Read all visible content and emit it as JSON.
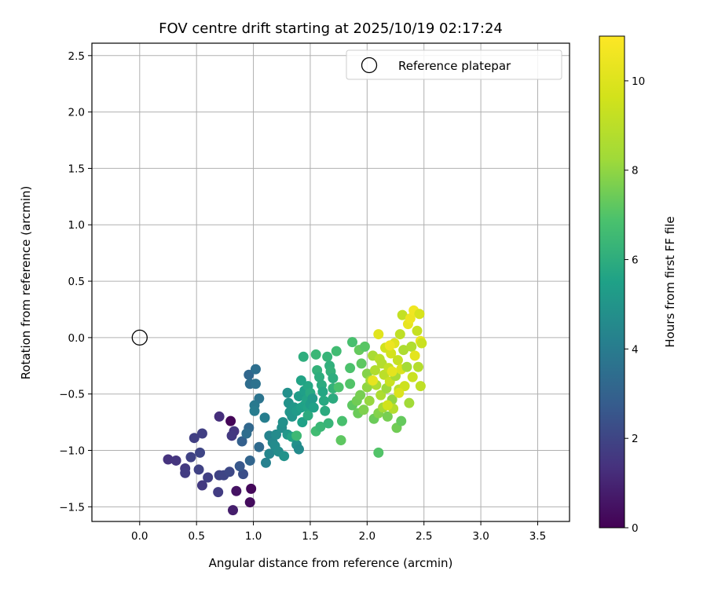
{
  "chart_data": {
    "type": "scatter",
    "title": "FOV centre drift starting at 2025/10/19 02:17:24",
    "xlabel": "Angular distance from reference (arcmin)",
    "ylabel": "Rotation from reference (arcmin)",
    "xlim": [
      -0.42,
      3.78
    ],
    "ylim": [
      -1.63,
      2.61
    ],
    "xticks": [
      "0.0",
      "0.5",
      "1.0",
      "1.5",
      "2.0",
      "2.5",
      "3.0",
      "3.5"
    ],
    "yticks": [
      "−1.5",
      "−1.0",
      "−0.5",
      "0.0",
      "0.5",
      "1.0",
      "1.5",
      "2.0",
      "2.5"
    ],
    "grid": true,
    "legend": {
      "position": "top-right",
      "entries": [
        "Reference platepar"
      ]
    },
    "colorbar": {
      "label": "Hours from first FF file",
      "range": [
        0,
        11
      ],
      "ticks": [
        "0",
        "2",
        "4",
        "6",
        "8",
        "10"
      ],
      "colormap": "viridis"
    },
    "reference_point": {
      "x": 0.0,
      "y": 0.0
    },
    "points": [
      {
        "x": 0.8,
        "y": -0.74,
        "h": 0.1
      },
      {
        "x": 0.98,
        "y": -1.34,
        "h": 0.2
      },
      {
        "x": 0.97,
        "y": -1.46,
        "h": 0.3
      },
      {
        "x": 0.85,
        "y": -1.36,
        "h": 0.5
      },
      {
        "x": 0.82,
        "y": -1.53,
        "h": 0.8
      },
      {
        "x": 0.7,
        "y": -0.7,
        "h": 1.3
      },
      {
        "x": 0.83,
        "y": -0.83,
        "h": 1.5
      },
      {
        "x": 0.81,
        "y": -0.87,
        "h": 1.6
      },
      {
        "x": 0.55,
        "y": -0.85,
        "h": 1.8
      },
      {
        "x": 0.48,
        "y": -0.89,
        "h": 1.8
      },
      {
        "x": 0.45,
        "y": -1.06,
        "h": 1.9
      },
      {
        "x": 0.53,
        "y": -1.02,
        "h": 2.0
      },
      {
        "x": 0.25,
        "y": -1.08,
        "h": 1.4
      },
      {
        "x": 0.32,
        "y": -1.09,
        "h": 1.5
      },
      {
        "x": 0.4,
        "y": -1.16,
        "h": 1.6
      },
      {
        "x": 0.4,
        "y": -1.2,
        "h": 1.7
      },
      {
        "x": 0.52,
        "y": -1.17,
        "h": 1.9
      },
      {
        "x": 0.55,
        "y": -1.31,
        "h": 1.6
      },
      {
        "x": 0.6,
        "y": -1.24,
        "h": 1.8
      },
      {
        "x": 0.7,
        "y": -1.22,
        "h": 1.9
      },
      {
        "x": 0.74,
        "y": -1.22,
        "h": 2.0
      },
      {
        "x": 0.69,
        "y": -1.37,
        "h": 1.7
      },
      {
        "x": 0.79,
        "y": -1.19,
        "h": 2.1
      },
      {
        "x": 0.91,
        "y": -1.21,
        "h": 2.3
      },
      {
        "x": 0.88,
        "y": -1.14,
        "h": 2.6
      },
      {
        "x": 0.9,
        "y": -0.92,
        "h": 2.9
      },
      {
        "x": 0.96,
        "y": -0.8,
        "h": 3.2
      },
      {
        "x": 0.94,
        "y": -0.85,
        "h": 3.4
      },
      {
        "x": 0.97,
        "y": -1.09,
        "h": 3.1
      },
      {
        "x": 1.05,
        "y": -0.97,
        "h": 3.3
      },
      {
        "x": 0.96,
        "y": -0.33,
        "h": 3.2
      },
      {
        "x": 0.97,
        "y": -0.41,
        "h": 3.4
      },
      {
        "x": 1.02,
        "y": -0.28,
        "h": 3.5
      },
      {
        "x": 1.02,
        "y": -0.41,
        "h": 3.6
      },
      {
        "x": 1.05,
        "y": -0.54,
        "h": 3.7
      },
      {
        "x": 1.01,
        "y": -0.6,
        "h": 3.9
      },
      {
        "x": 1.01,
        "y": -0.65,
        "h": 4.0
      },
      {
        "x": 1.1,
        "y": -0.71,
        "h": 4.1
      },
      {
        "x": 1.11,
        "y": -1.11,
        "h": 4.2
      },
      {
        "x": 1.14,
        "y": -1.03,
        "h": 4.4
      },
      {
        "x": 1.14,
        "y": -0.87,
        "h": 4.3
      },
      {
        "x": 1.17,
        "y": -0.93,
        "h": 4.5
      },
      {
        "x": 1.19,
        "y": -0.96,
        "h": 4.6
      },
      {
        "x": 1.2,
        "y": -0.86,
        "h": 4.6
      },
      {
        "x": 1.22,
        "y": -1.01,
        "h": 4.7
      },
      {
        "x": 1.25,
        "y": -0.8,
        "h": 4.7
      },
      {
        "x": 1.26,
        "y": -0.75,
        "h": 4.8
      },
      {
        "x": 1.27,
        "y": -1.05,
        "h": 4.9
      },
      {
        "x": 1.3,
        "y": -0.49,
        "h": 4.8
      },
      {
        "x": 1.31,
        "y": -0.58,
        "h": 4.9
      },
      {
        "x": 1.32,
        "y": -0.66,
        "h": 5.0
      },
      {
        "x": 1.34,
        "y": -0.7,
        "h": 5.0
      },
      {
        "x": 1.3,
        "y": -0.86,
        "h": 5.1
      },
      {
        "x": 1.34,
        "y": -0.88,
        "h": 5.6
      },
      {
        "x": 1.36,
        "y": -0.62,
        "h": 5.1
      },
      {
        "x": 1.38,
        "y": -0.65,
        "h": 5.2
      },
      {
        "x": 1.38,
        "y": -0.95,
        "h": 4.8
      },
      {
        "x": 1.4,
        "y": -0.99,
        "h": 4.6
      },
      {
        "x": 1.4,
        "y": -0.52,
        "h": 5.3
      },
      {
        "x": 1.42,
        "y": -0.62,
        "h": 5.4
      },
      {
        "x": 1.43,
        "y": -0.75,
        "h": 5.5
      },
      {
        "x": 1.45,
        "y": -0.47,
        "h": 5.4
      },
      {
        "x": 1.45,
        "y": -0.6,
        "h": 5.5
      },
      {
        "x": 1.47,
        "y": -0.55,
        "h": 5.6
      },
      {
        "x": 1.48,
        "y": -0.43,
        "h": 5.7
      },
      {
        "x": 1.48,
        "y": -0.62,
        "h": 5.6
      },
      {
        "x": 1.48,
        "y": -0.69,
        "h": 5.9
      },
      {
        "x": 1.5,
        "y": -0.49,
        "h": 5.8
      },
      {
        "x": 1.5,
        "y": -0.59,
        "h": 5.3
      },
      {
        "x": 1.52,
        "y": -0.54,
        "h": 5.2
      },
      {
        "x": 1.53,
        "y": -0.62,
        "h": 5.5
      },
      {
        "x": 1.42,
        "y": -0.38,
        "h": 5.6
      },
      {
        "x": 1.44,
        "y": -0.17,
        "h": 6.0
      },
      {
        "x": 1.55,
        "y": -0.15,
        "h": 6.4
      },
      {
        "x": 1.56,
        "y": -0.29,
        "h": 6.2
      },
      {
        "x": 1.58,
        "y": -0.35,
        "h": 6.0
      },
      {
        "x": 1.6,
        "y": -0.42,
        "h": 5.9
      },
      {
        "x": 1.61,
        "y": -0.48,
        "h": 5.7
      },
      {
        "x": 1.62,
        "y": -0.56,
        "h": 5.8
      },
      {
        "x": 1.63,
        "y": -0.65,
        "h": 5.9
      },
      {
        "x": 1.65,
        "y": -0.17,
        "h": 6.3
      },
      {
        "x": 1.67,
        "y": -0.25,
        "h": 6.1
      },
      {
        "x": 1.68,
        "y": -0.3,
        "h": 6.2
      },
      {
        "x": 1.7,
        "y": -0.36,
        "h": 6.0
      },
      {
        "x": 1.7,
        "y": -0.45,
        "h": 6.2
      },
      {
        "x": 1.7,
        "y": -0.54,
        "h": 5.9
      },
      {
        "x": 1.73,
        "y": -0.12,
        "h": 6.6
      },
      {
        "x": 1.55,
        "y": -0.83,
        "h": 6.6
      },
      {
        "x": 1.59,
        "y": -0.79,
        "h": 6.4
      },
      {
        "x": 1.66,
        "y": -0.76,
        "h": 6.3
      },
      {
        "x": 1.38,
        "y": -0.87,
        "h": 6.5
      },
      {
        "x": 1.77,
        "y": -0.91,
        "h": 7.2
      },
      {
        "x": 1.75,
        "y": -0.44,
        "h": 6.9
      },
      {
        "x": 1.78,
        "y": -0.74,
        "h": 6.8
      },
      {
        "x": 1.85,
        "y": -0.27,
        "h": 6.9
      },
      {
        "x": 1.85,
        "y": -0.41,
        "h": 7.0
      },
      {
        "x": 1.87,
        "y": -0.04,
        "h": 6.8
      },
      {
        "x": 1.87,
        "y": -0.6,
        "h": 7.2
      },
      {
        "x": 1.91,
        "y": -0.56,
        "h": 7.5
      },
      {
        "x": 1.92,
        "y": -0.67,
        "h": 7.4
      },
      {
        "x": 1.93,
        "y": -0.11,
        "h": 7.3
      },
      {
        "x": 1.94,
        "y": -0.51,
        "h": 7.6
      },
      {
        "x": 1.95,
        "y": -0.23,
        "h": 7.2
      },
      {
        "x": 1.97,
        "y": -0.64,
        "h": 7.7
      },
      {
        "x": 1.98,
        "y": -0.08,
        "h": 7.1
      },
      {
        "x": 2.0,
        "y": -0.32,
        "h": 7.8
      },
      {
        "x": 2.0,
        "y": -0.44,
        "h": 8.0
      },
      {
        "x": 2.02,
        "y": -0.56,
        "h": 8.1
      },
      {
        "x": 2.03,
        "y": -0.38,
        "h": 8.3
      },
      {
        "x": 2.05,
        "y": -0.16,
        "h": 8.5
      },
      {
        "x": 2.06,
        "y": -0.72,
        "h": 7.4
      },
      {
        "x": 2.07,
        "y": -0.29,
        "h": 8.7
      },
      {
        "x": 2.08,
        "y": -0.42,
        "h": 8.6
      },
      {
        "x": 2.1,
        "y": -0.67,
        "h": 7.8
      },
      {
        "x": 2.1,
        "y": -1.02,
        "h": 7.0
      },
      {
        "x": 2.11,
        "y": -0.19,
        "h": 8.9
      },
      {
        "x": 2.12,
        "y": -0.51,
        "h": 8.6
      },
      {
        "x": 2.13,
        "y": -0.23,
        "h": 8.8
      },
      {
        "x": 2.14,
        "y": -0.62,
        "h": 8.4
      },
      {
        "x": 2.15,
        "y": -0.33,
        "h": 9.0
      },
      {
        "x": 2.16,
        "y": -0.09,
        "h": 9.6
      },
      {
        "x": 2.17,
        "y": -0.45,
        "h": 8.2
      },
      {
        "x": 2.18,
        "y": -0.7,
        "h": 7.6
      },
      {
        "x": 2.19,
        "y": -0.27,
        "h": 9.2
      },
      {
        "x": 2.2,
        "y": -0.39,
        "h": 9.4
      },
      {
        "x": 2.21,
        "y": -0.14,
        "h": 9.7
      },
      {
        "x": 2.22,
        "y": -0.55,
        "h": 8.0
      },
      {
        "x": 2.23,
        "y": -0.63,
        "h": 8.8
      },
      {
        "x": 2.24,
        "y": -0.05,
        "h": 10.0
      },
      {
        "x": 2.25,
        "y": -0.34,
        "h": 8.5
      },
      {
        "x": 2.26,
        "y": -0.8,
        "h": 7.5
      },
      {
        "x": 2.27,
        "y": -0.2,
        "h": 9.3
      },
      {
        "x": 2.28,
        "y": -0.46,
        "h": 8.9
      },
      {
        "x": 2.29,
        "y": 0.03,
        "h": 9.1
      },
      {
        "x": 2.3,
        "y": -0.74,
        "h": 7.3
      },
      {
        "x": 2.3,
        "y": -0.28,
        "h": 9.9
      },
      {
        "x": 2.31,
        "y": 0.2,
        "h": 9.2
      },
      {
        "x": 2.32,
        "y": -0.11,
        "h": 8.6
      },
      {
        "x": 2.33,
        "y": -0.43,
        "h": 9.5
      },
      {
        "x": 2.35,
        "y": -0.26,
        "h": 8.4
      },
      {
        "x": 2.36,
        "y": 0.12,
        "h": 10.3
      },
      {
        "x": 2.37,
        "y": -0.58,
        "h": 8.3
      },
      {
        "x": 2.38,
        "y": 0.17,
        "h": 10.5
      },
      {
        "x": 2.39,
        "y": -0.08,
        "h": 8.7
      },
      {
        "x": 2.4,
        "y": -0.35,
        "h": 9.4
      },
      {
        "x": 2.41,
        "y": 0.24,
        "h": 10.6
      },
      {
        "x": 2.42,
        "y": -0.16,
        "h": 10.2
      },
      {
        "x": 2.44,
        "y": 0.06,
        "h": 9.3
      },
      {
        "x": 2.45,
        "y": -0.26,
        "h": 8.8
      },
      {
        "x": 2.46,
        "y": 0.21,
        "h": 9.8
      },
      {
        "x": 2.47,
        "y": -0.43,
        "h": 9.1
      },
      {
        "x": 2.47,
        "y": -0.03,
        "h": 10.4
      },
      {
        "x": 2.48,
        "y": -0.05,
        "h": 9.4
      },
      {
        "x": 2.1,
        "y": 0.03,
        "h": 10.1
      },
      {
        "x": 2.05,
        "y": -0.38,
        "h": 10.3
      },
      {
        "x": 2.22,
        "y": -0.3,
        "h": 10.2
      },
      {
        "x": 2.18,
        "y": -0.6,
        "h": 9.6
      },
      {
        "x": 2.2,
        "y": -0.07,
        "h": 10.5
      },
      {
        "x": 2.28,
        "y": -0.49,
        "h": 9.9
      }
    ]
  }
}
